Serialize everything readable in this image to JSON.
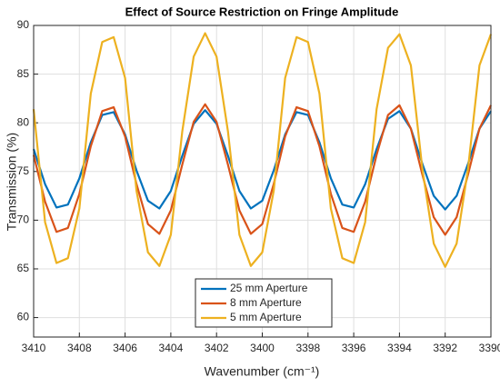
{
  "chart_data": {
    "type": "line",
    "title": "Effect of Source Restriction on Fringe Amplitude",
    "x_label": "Wavenumber (cm⁻¹)",
    "y_label": "Transmission (%)",
    "x": [
      3410,
      3409.5,
      3409,
      3408.5,
      3408,
      3407.5,
      3407,
      3406.5,
      3406,
      3405.5,
      3405,
      3404.5,
      3404,
      3403.5,
      3403,
      3402.5,
      3402,
      3401.5,
      3401,
      3400.5,
      3400,
      3399.5,
      3399,
      3398.5,
      3398,
      3397.5,
      3397,
      3396.5,
      3396,
      3395.5,
      3395,
      3394.5,
      3394,
      3393.5,
      3393,
      3392.5,
      3392,
      3391.5,
      3391,
      3390.5,
      3390
    ],
    "series": [
      {
        "name": "25 mm Aperture",
        "color": "#0072bd",
        "values": [
          77.3,
          73.7,
          71.3,
          71.6,
          74.3,
          78.0,
          80.8,
          81.1,
          78.8,
          75.1,
          72.0,
          71.2,
          73.0,
          76.6,
          79.9,
          81.3,
          79.9,
          76.6,
          73.0,
          71.2,
          72.0,
          75.1,
          78.8,
          81.1,
          80.8,
          78.0,
          74.3,
          71.6,
          71.3,
          73.7,
          77.3,
          80.4,
          81.2,
          79.4,
          75.8,
          72.5,
          71.1,
          72.5,
          75.8,
          79.4,
          81.2
        ]
      },
      {
        "name": "8 mm Aperture",
        "color": "#d95319",
        "values": [
          76.7,
          71.9,
          68.8,
          69.2,
          72.7,
          77.6,
          81.2,
          81.6,
          78.6,
          73.7,
          69.6,
          68.6,
          71.0,
          75.7,
          80.1,
          81.9,
          80.1,
          75.7,
          71.0,
          68.6,
          69.6,
          73.7,
          78.6,
          81.6,
          81.2,
          77.6,
          72.7,
          69.2,
          68.8,
          71.9,
          76.7,
          80.8,
          81.8,
          79.4,
          74.7,
          70.3,
          68.5,
          70.3,
          74.7,
          79.4,
          81.8
        ]
      },
      {
        "name": "5 mm Aperture",
        "color": "#edb120",
        "values": [
          81.4,
          69.8,
          65.6,
          66.1,
          71.2,
          83.0,
          88.3,
          88.8,
          84.6,
          73.0,
          66.7,
          65.3,
          68.5,
          79.1,
          86.8,
          89.2,
          86.8,
          79.1,
          68.5,
          65.3,
          66.7,
          73.0,
          84.6,
          88.8,
          88.3,
          83.0,
          71.2,
          66.1,
          65.6,
          69.8,
          81.4,
          87.7,
          89.1,
          85.9,
          75.3,
          67.6,
          65.2,
          67.6,
          75.3,
          85.9,
          89.1
        ]
      }
    ],
    "xlim": [
      3410,
      3390
    ],
    "xticks": [
      3410,
      3408,
      3406,
      3404,
      3402,
      3400,
      3398,
      3396,
      3394,
      3392,
      3390
    ],
    "ylim": [
      58,
      90
    ],
    "yticks": [
      60,
      65,
      70,
      75,
      80,
      85,
      90
    ],
    "grid": true,
    "legend_location": "south"
  }
}
